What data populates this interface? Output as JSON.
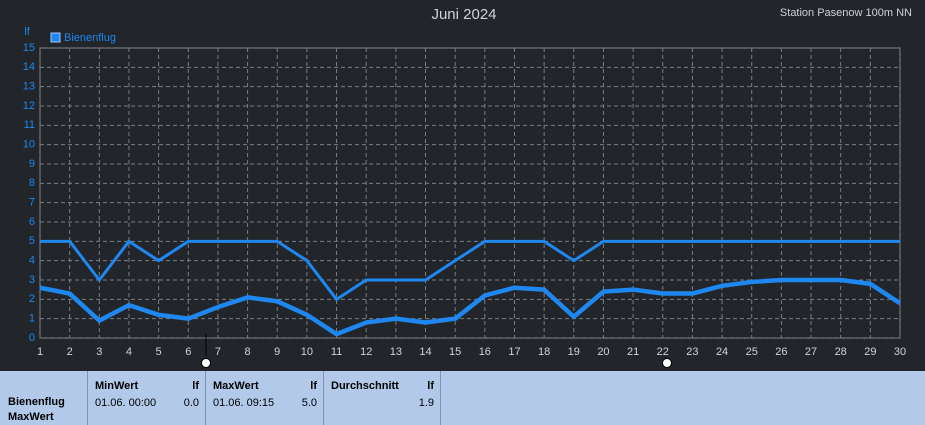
{
  "chart_data": {
    "type": "line",
    "title": "Juni 2024",
    "subtitle": "Station Pasenow 100m NN",
    "y_label": "lf",
    "x": [
      1,
      2,
      3,
      4,
      5,
      6,
      7,
      8,
      9,
      10,
      11,
      12,
      13,
      14,
      15,
      16,
      17,
      18,
      19,
      20,
      21,
      22,
      23,
      24,
      25,
      26,
      27,
      28,
      29,
      30
    ],
    "series": [
      {
        "name": "Bienenflug",
        "color": "#1e88f0",
        "values": [
          5,
          5,
          3,
          5,
          4,
          5,
          5,
          5,
          5,
          4,
          2,
          3,
          3,
          3,
          4,
          5,
          5,
          5,
          4,
          5,
          5,
          5,
          5,
          5,
          5,
          5,
          5,
          5,
          5,
          5
        ]
      },
      {
        "color": "#1e88f0",
        "values": [
          2.6,
          2.3,
          0.9,
          1.7,
          1.2,
          1.0,
          1.6,
          2.1,
          1.9,
          1.2,
          0.2,
          0.8,
          1.0,
          0.8,
          1.0,
          2.2,
          2.6,
          2.5,
          1.1,
          2.4,
          2.5,
          2.3,
          2.3,
          2.7,
          2.9,
          3.0,
          3.0,
          3.0,
          2.8,
          1.8
        ]
      }
    ],
    "xlim": [
      1,
      30
    ],
    "xticks": [
      1,
      2,
      3,
      4,
      5,
      6,
      7,
      8,
      9,
      10,
      11,
      12,
      13,
      14,
      15,
      16,
      17,
      18,
      19,
      20,
      21,
      22,
      23,
      24,
      25,
      26,
      27,
      28,
      29,
      30
    ],
    "ylim": [
      0,
      15
    ],
    "yticks": [
      0,
      1,
      2,
      3,
      4,
      5,
      6,
      7,
      8,
      9,
      10,
      11,
      12,
      13,
      14,
      15
    ],
    "grid": true,
    "legend": "top-left"
  },
  "table": {
    "row_labels": [
      "Bienenflug",
      "MaxWert"
    ],
    "columns": [
      {
        "header": "MinWert",
        "unit": "lf",
        "date": "01.06.  00:00",
        "value": "0.0"
      },
      {
        "header": "MaxWert",
        "unit": "lf",
        "date": "01.06.  09:15",
        "value": "5.0"
      },
      {
        "header": "Durchschnitt",
        "unit": "lf",
        "value": "1.9"
      }
    ]
  }
}
